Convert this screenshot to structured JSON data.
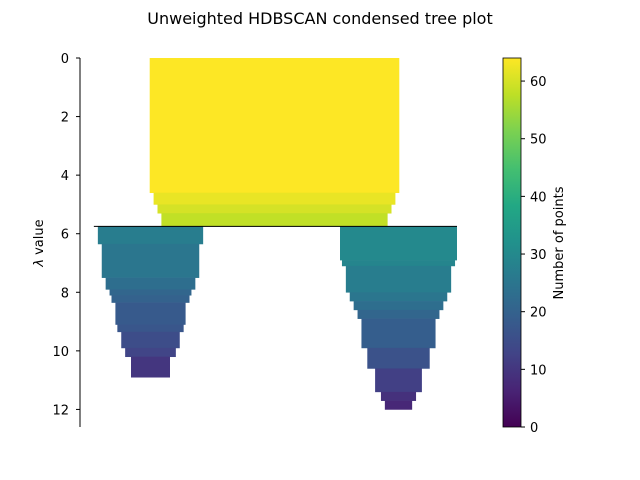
{
  "chart_data": {
    "type": "icicle",
    "title": "Unweighted HDBSCAN condensed tree plot",
    "ylabel": "λ value",
    "ylabel_display": "$\\lambda$ value",
    "ylim": [
      12.6,
      0
    ],
    "y_ticks": [
      0,
      2,
      4,
      6,
      8,
      10,
      12
    ],
    "colorbar": {
      "label": "Number of points",
      "colormap": "viridis",
      "range": [
        0,
        64
      ],
      "ticks": [
        0,
        10,
        20,
        30,
        40,
        50,
        60
      ]
    },
    "split_lambda": 5.75,
    "clusters": [
      {
        "name": "root",
        "segments": [
          {
            "lambda_start": 0.0,
            "lambda_end": 4.6,
            "points": 64
          },
          {
            "lambda_start": 4.6,
            "lambda_end": 5.0,
            "points": 62
          },
          {
            "lambda_start": 5.0,
            "lambda_end": 5.3,
            "points": 60
          },
          {
            "lambda_start": 5.3,
            "lambda_end": 5.75,
            "points": 58
          }
        ]
      },
      {
        "name": "left child",
        "segments": [
          {
            "lambda_start": 5.75,
            "lambda_end": 6.35,
            "points": 27
          },
          {
            "lambda_start": 6.35,
            "lambda_end": 7.5,
            "points": 25
          },
          {
            "lambda_start": 7.5,
            "lambda_end": 7.9,
            "points": 23
          },
          {
            "lambda_start": 7.9,
            "lambda_end": 8.1,
            "points": 21
          },
          {
            "lambda_start": 8.1,
            "lambda_end": 8.35,
            "points": 20
          },
          {
            "lambda_start": 8.35,
            "lambda_end": 9.1,
            "points": 18
          },
          {
            "lambda_start": 9.1,
            "lambda_end": 9.35,
            "points": 17
          },
          {
            "lambda_start": 9.35,
            "lambda_end": 9.9,
            "points": 15
          },
          {
            "lambda_start": 9.9,
            "lambda_end": 10.2,
            "points": 13
          },
          {
            "lambda_start": 10.2,
            "lambda_end": 10.9,
            "points": 10
          }
        ]
      },
      {
        "name": "right child",
        "segments": [
          {
            "lambda_start": 5.75,
            "lambda_end": 6.9,
            "points": 30
          },
          {
            "lambda_start": 6.9,
            "lambda_end": 7.1,
            "points": 29
          },
          {
            "lambda_start": 7.1,
            "lambda_end": 8.0,
            "points": 27
          },
          {
            "lambda_start": 8.0,
            "lambda_end": 8.3,
            "points": 25
          },
          {
            "lambda_start": 8.3,
            "lambda_end": 8.6,
            "points": 23
          },
          {
            "lambda_start": 8.6,
            "lambda_end": 8.9,
            "points": 21
          },
          {
            "lambda_start": 8.9,
            "lambda_end": 9.9,
            "points": 19
          },
          {
            "lambda_start": 9.9,
            "lambda_end": 10.6,
            "points": 16
          },
          {
            "lambda_start": 10.6,
            "lambda_end": 11.4,
            "points": 12
          },
          {
            "lambda_start": 11.4,
            "lambda_end": 11.7,
            "points": 9
          },
          {
            "lambda_start": 11.7,
            "lambda_end": 12.0,
            "points": 7
          }
        ]
      }
    ]
  }
}
